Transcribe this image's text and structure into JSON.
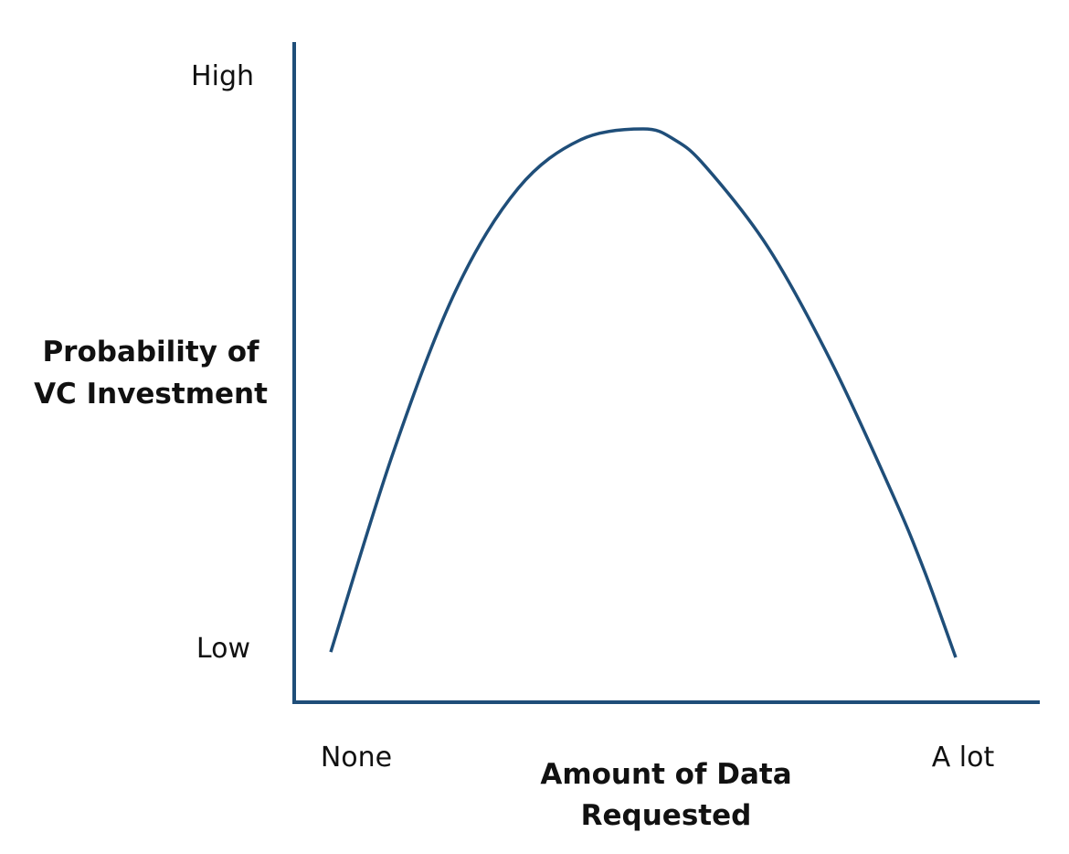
{
  "chart_data": {
    "type": "line",
    "title": "",
    "ylabel_lines": [
      "Probability of",
      "VC Investment"
    ],
    "xlabel_lines": [
      "Amount of Data",
      "Requested"
    ],
    "x_tick_labels": [
      "None",
      "A lot"
    ],
    "y_tick_labels": [
      "High",
      "Low"
    ],
    "xlim": [
      0,
      1
    ],
    "ylim": [
      0,
      1
    ],
    "grid": false,
    "legend": "none",
    "line_color": "#1f4e79",
    "series": [
      {
        "x": [
          0.0,
          0.1,
          0.2,
          0.3,
          0.4,
          0.5,
          0.55,
          0.6,
          0.7,
          0.8,
          0.9,
          0.95,
          1.0
        ],
        "y": [
          0.01,
          0.38,
          0.68,
          0.87,
          0.96,
          0.98,
          0.96,
          0.91,
          0.76,
          0.55,
          0.3,
          0.16,
          0.0
        ]
      }
    ]
  }
}
